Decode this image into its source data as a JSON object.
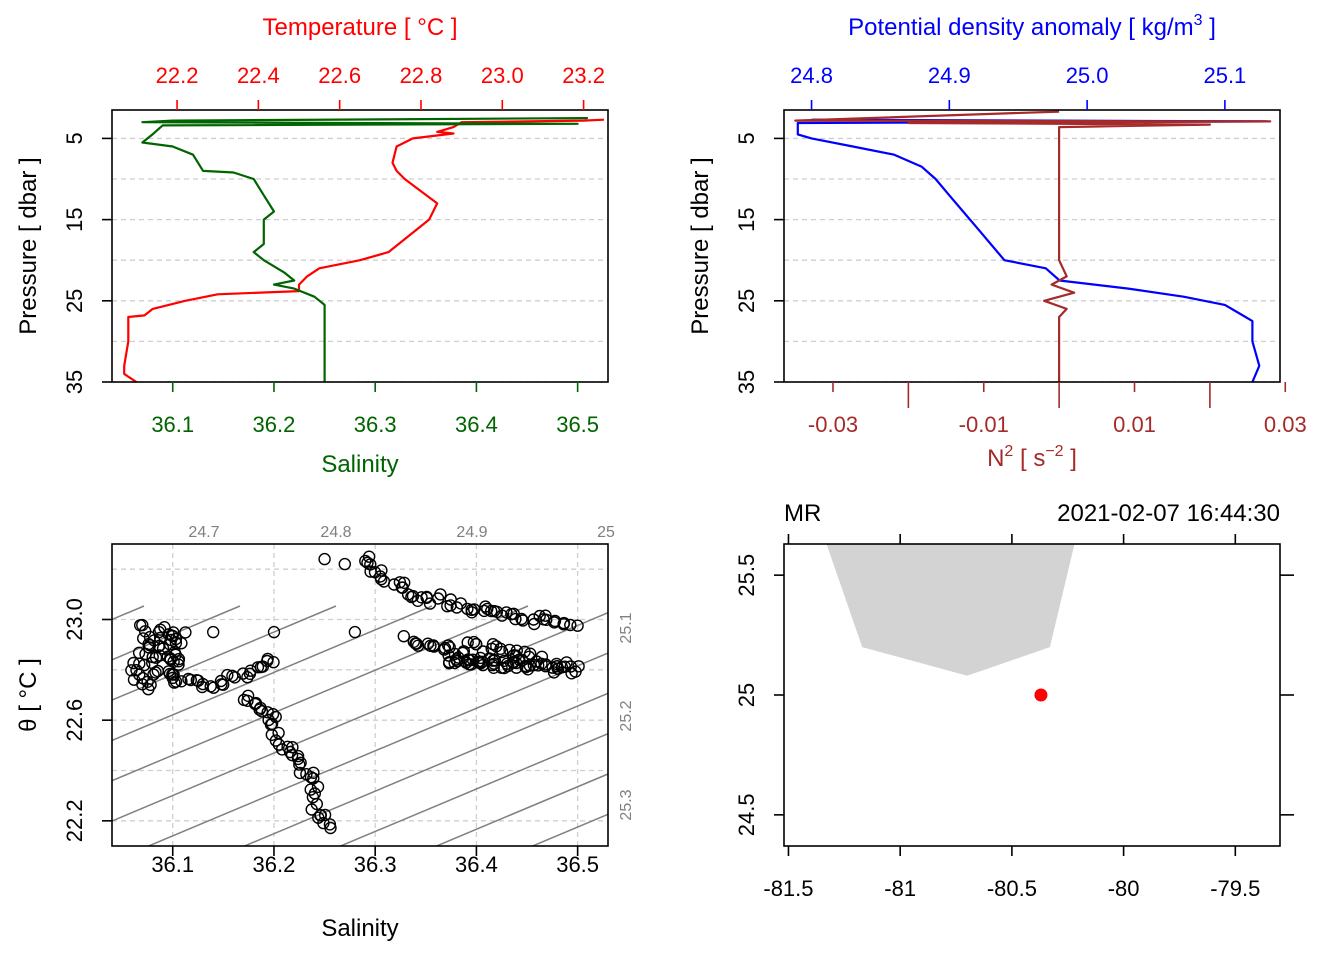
{
  "colors": {
    "temperature": "#ff0000",
    "salinity": "#006400",
    "density": "#0000ff",
    "n2": "#a52a2a",
    "isopycnal": "#808080",
    "land": "#d3d3d3",
    "station": "#ff0000"
  },
  "chart_data": [
    {
      "id": "ts_profile",
      "type": "line",
      "xlabel_top": "Temperature [ °C ]",
      "xlabel_bottom": "Salinity",
      "ylabel": "Pressure [ dbar ]",
      "top_ticks": [
        "22.2",
        "22.4",
        "22.6",
        "22.8",
        "23.0",
        "23.2"
      ],
      "top_tick_values": [
        22.2,
        22.4,
        22.6,
        22.8,
        23.0,
        23.2
      ],
      "top_xlim": [
        22.04,
        23.26
      ],
      "bottom_ticks": [
        "36.1",
        "36.2",
        "36.3",
        "36.4",
        "36.5"
      ],
      "bottom_tick_values": [
        36.1,
        36.2,
        36.3,
        36.4,
        36.5
      ],
      "bottom_xlim": [
        36.04,
        36.53
      ],
      "y_ticks": [
        "5",
        "15",
        "25",
        "35"
      ],
      "y_tick_values": [
        5,
        15,
        25,
        35
      ],
      "ylim": [
        35,
        1.5
      ],
      "grid": true,
      "series": [
        {
          "name": "Temperature",
          "axis": "top",
          "points": [
            [
              23.25,
              2.7
            ],
            [
              23.2,
              2.8
            ],
            [
              22.9,
              3.0
            ],
            [
              22.88,
              3.6
            ],
            [
              22.84,
              4.2
            ],
            [
              22.88,
              4.4
            ],
            [
              22.78,
              5.0
            ],
            [
              22.74,
              6.0
            ],
            [
              22.73,
              8.0
            ],
            [
              22.74,
              9.0
            ],
            [
              22.76,
              10.0
            ],
            [
              22.8,
              11.5
            ],
            [
              22.84,
              13.0
            ],
            [
              22.82,
              15.0
            ],
            [
              22.77,
              17.0
            ],
            [
              22.72,
              19.0
            ],
            [
              22.65,
              20.0
            ],
            [
              22.55,
              21.0
            ],
            [
              22.52,
              22.0
            ],
            [
              22.5,
              23.0
            ],
            [
              22.5,
              23.8
            ],
            [
              22.3,
              24.2
            ],
            [
              22.22,
              25.0
            ],
            [
              22.14,
              26.0
            ],
            [
              22.12,
              26.8
            ],
            [
              22.08,
              27.0
            ],
            [
              22.08,
              30.0
            ],
            [
              22.07,
              33.0
            ],
            [
              22.07,
              34.0
            ],
            [
              22.1,
              35.0
            ]
          ]
        },
        {
          "name": "Salinity",
          "axis": "bottom",
          "points": [
            [
              36.51,
              2.5
            ],
            [
              36.1,
              2.8
            ],
            [
              36.07,
              3.0
            ],
            [
              36.5,
              3.2
            ],
            [
              36.09,
              3.4
            ],
            [
              36.08,
              4.5
            ],
            [
              36.07,
              5.5
            ],
            [
              36.1,
              6.0
            ],
            [
              36.12,
              7.0
            ],
            [
              36.13,
              9.0
            ],
            [
              36.16,
              9.2
            ],
            [
              36.18,
              10.0
            ],
            [
              36.19,
              12.0
            ],
            [
              36.2,
              14.0
            ],
            [
              36.19,
              15.0
            ],
            [
              36.19,
              18.0
            ],
            [
              36.18,
              19.0
            ],
            [
              36.19,
              20.0
            ],
            [
              36.21,
              21.5
            ],
            [
              36.22,
              22.5
            ],
            [
              36.2,
              23.0
            ],
            [
              36.22,
              23.5
            ],
            [
              36.24,
              24.5
            ],
            [
              36.25,
              25.5
            ],
            [
              36.25,
              26.8
            ],
            [
              36.25,
              28.0
            ],
            [
              36.25,
              32.0
            ],
            [
              36.25,
              35.0
            ]
          ]
        }
      ]
    },
    {
      "id": "density_n2_profile",
      "type": "line",
      "xlabel_top": "Potential density anomaly [ kg/m³ ]",
      "xlabel_bottom": "N² [ s⁻² ]",
      "ylabel": "Pressure [ dbar ]",
      "top_ticks": [
        "24.8",
        "24.9",
        "25.0",
        "25.1"
      ],
      "top_tick_values": [
        24.8,
        24.9,
        25.0,
        25.1
      ],
      "top_xlim": [
        24.78,
        25.14
      ],
      "bottom_ticks": [
        "-0.03",
        "-0.01",
        "0.01",
        "0.03"
      ],
      "bottom_tick_values": [
        -0.03,
        -0.01,
        0.01,
        0.03
      ],
      "bottom_minor_tick_values": [
        -0.02,
        0.0,
        0.02
      ],
      "bottom_xlim": [
        -0.0365,
        0.0293
      ],
      "y_ticks": [
        "5",
        "15",
        "25",
        "35"
      ],
      "y_tick_values": [
        5,
        15,
        25,
        35
      ],
      "ylim": [
        35,
        1.5
      ],
      "grid": true,
      "series": [
        {
          "name": "Potential density anomaly",
          "axis": "top",
          "points": [
            [
              24.8,
              2.7
            ],
            [
              25.13,
              2.9
            ],
            [
              24.79,
              3.1
            ],
            [
              24.79,
              4.5
            ],
            [
              24.8,
              5.0
            ],
            [
              24.83,
              6.0
            ],
            [
              24.86,
              7.0
            ],
            [
              24.88,
              8.5
            ],
            [
              24.89,
              10.0
            ],
            [
              24.9,
              12.0
            ],
            [
              24.91,
              14.0
            ],
            [
              24.92,
              16.0
            ],
            [
              24.93,
              18.0
            ],
            [
              24.94,
              20.0
            ],
            [
              24.97,
              21.0
            ],
            [
              24.98,
              22.5
            ],
            [
              25.03,
              23.5
            ],
            [
              25.07,
              24.5
            ],
            [
              25.1,
              25.5
            ],
            [
              25.11,
              26.5
            ],
            [
              25.12,
              27.5
            ],
            [
              25.12,
              30.0
            ],
            [
              25.125,
              33.0
            ],
            [
              25.12,
              35.0
            ]
          ]
        },
        {
          "name": "N2",
          "axis": "bottom",
          "points": [
            [
              0.0,
              1.7
            ],
            [
              -0.035,
              2.8
            ],
            [
              0.028,
              2.9
            ],
            [
              -0.02,
              3.1
            ],
            [
              0.02,
              3.3
            ],
            [
              0.0,
              3.6
            ],
            [
              0.0,
              5.0
            ],
            [
              0.0,
              20.0
            ],
            [
              0.001,
              22.0
            ],
            [
              -0.001,
              23.0
            ],
            [
              0.002,
              24.0
            ],
            [
              -0.002,
              25.0
            ],
            [
              0.001,
              26.0
            ],
            [
              0.0,
              27.0
            ],
            [
              0.0,
              35.0
            ]
          ]
        }
      ]
    },
    {
      "id": "ts_diagram",
      "type": "scatter",
      "xlabel": "Salinity",
      "ylabel": "θ [ °C ]",
      "x_ticks": [
        "36.1",
        "36.2",
        "36.3",
        "36.4",
        "36.5"
      ],
      "x_tick_values": [
        36.1,
        36.2,
        36.3,
        36.4,
        36.5
      ],
      "xlim": [
        36.04,
        36.53
      ],
      "y_ticks": [
        "22.2",
        "22.6",
        "23.0"
      ],
      "y_tick_values": [
        22.2,
        22.6,
        23.0
      ],
      "ylim": [
        22.1,
        23.3
      ],
      "grid": true,
      "isopycnal_labels_top": [
        "24.7",
        "24.8",
        "24.9",
        "25"
      ],
      "isopycnal_labels_right": [
        "25.1",
        "25.2",
        "25.3"
      ],
      "clusters": [
        {
          "points": [
            [
              36.07,
              22.98
            ],
            [
              36.08,
              22.9
            ],
            [
              36.07,
              22.85
            ],
            [
              36.06,
              22.8
            ],
            [
              36.07,
              22.76
            ],
            [
              36.08,
              22.74
            ],
            [
              36.09,
              22.97
            ],
            [
              36.1,
              22.93
            ],
            [
              36.1,
              22.78
            ],
            [
              36.11,
              22.95
            ]
          ]
        },
        {
          "points": [
            [
              36.1,
              22.75
            ],
            [
              36.13,
              22.74
            ],
            [
              36.15,
              22.75
            ],
            [
              36.17,
              22.78
            ],
            [
              36.18,
              22.8
            ],
            [
              36.19,
              22.84
            ],
            [
              36.2,
              22.85
            ]
          ]
        },
        {
          "points": [
            [
              36.17,
              22.7
            ],
            [
              36.18,
              22.66
            ],
            [
              36.19,
              22.64
            ],
            [
              36.2,
              22.6
            ],
            [
              36.2,
              22.55
            ],
            [
              36.21,
              22.5
            ],
            [
              36.22,
              22.46
            ],
            [
              36.23,
              22.4
            ],
            [
              36.24,
              22.35
            ],
            [
              36.24,
              22.3
            ],
            [
              36.24,
              22.25
            ],
            [
              36.25,
              22.21
            ],
            [
              36.26,
              22.17
            ]
          ]
        },
        {
          "points": [
            [
              36.33,
              22.92
            ],
            [
              36.35,
              22.9
            ],
            [
              36.38,
              22.88
            ],
            [
              36.4,
              22.9
            ],
            [
              36.42,
              22.88
            ],
            [
              36.44,
              22.86
            ],
            [
              36.46,
              22.84
            ],
            [
              36.48,
              22.82
            ],
            [
              36.5,
              22.8
            ],
            [
              36.37,
              22.84
            ],
            [
              36.45,
              22.82
            ]
          ]
        },
        {
          "points": [
            [
              36.29,
              23.24
            ],
            [
              36.3,
              23.2
            ],
            [
              36.31,
              23.16
            ],
            [
              36.33,
              23.12
            ],
            [
              36.34,
              23.08
            ],
            [
              36.36,
              23.08
            ],
            [
              36.38,
              23.06
            ],
            [
              36.4,
              23.04
            ],
            [
              36.42,
              23.02
            ],
            [
              36.45,
              23.0
            ],
            [
              36.48,
              23.0
            ],
            [
              36.5,
              22.98
            ]
          ]
        }
      ],
      "extra_points": [
        [
          36.14,
          22.95
        ],
        [
          36.2,
          22.95
        ],
        [
          36.28,
          22.95
        ],
        [
          36.25,
          23.24
        ],
        [
          36.27,
          23.22
        ]
      ]
    },
    {
      "id": "station_map",
      "type": "scatter",
      "top_left_label": "MR",
      "top_right_label": "2021-02-07 16:44:30",
      "x_ticks": [
        "-81.5",
        "-81",
        "-80.5",
        "-80",
        "-79.5"
      ],
      "x_tick_values": [
        -81.5,
        -81.0,
        -80.5,
        -80.0,
        -79.5
      ],
      "xlim": [
        -81.52,
        -79.3
      ],
      "y_ticks": [
        "24.5",
        "25",
        "25.5"
      ],
      "y_tick_values": [
        24.5,
        25.0,
        25.5
      ],
      "ylim": [
        24.37,
        25.63
      ],
      "land": [
        [
          -81.33,
          25.63
        ],
        [
          -80.22,
          25.63
        ],
        [
          -80.33,
          25.2
        ],
        [
          -80.7,
          25.08
        ],
        [
          -81.17,
          25.2
        ]
      ],
      "station": [
        -80.37,
        25.0
      ]
    }
  ]
}
